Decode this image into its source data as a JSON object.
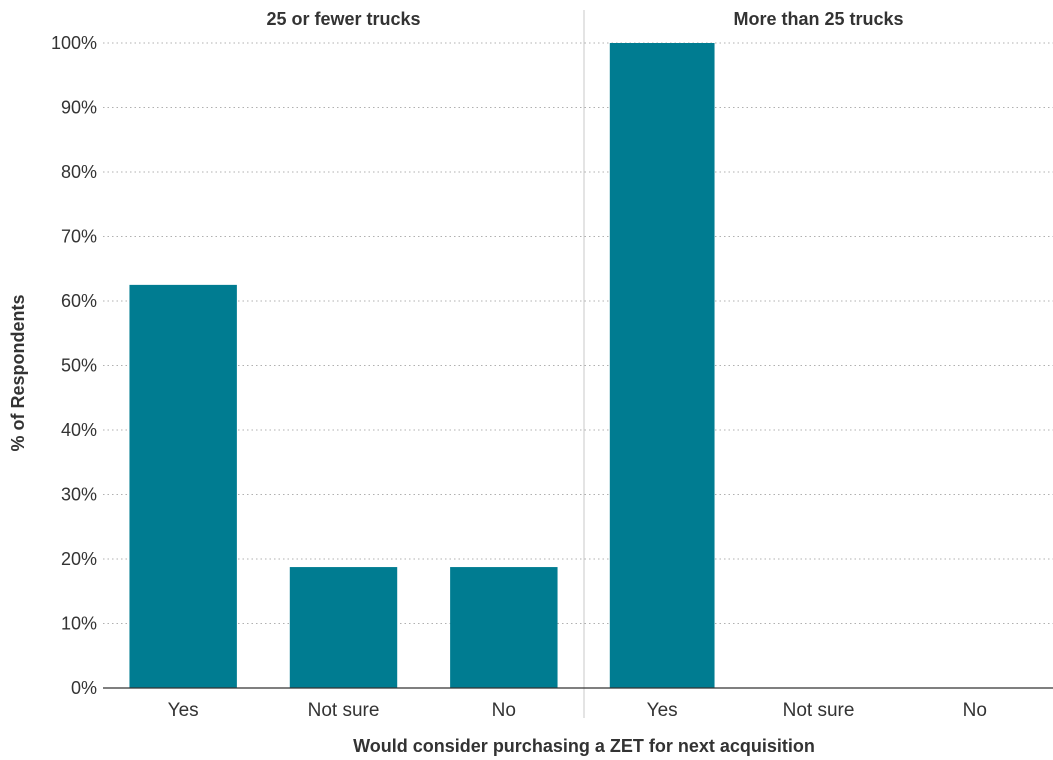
{
  "chart_data": {
    "type": "bar",
    "ylabel": "% of Respondents",
    "xlabel": "Would consider purchasing a ZET for next acquisition",
    "ylim": [
      0,
      100
    ],
    "yticks": [
      "0%",
      "10%",
      "20%",
      "30%",
      "40%",
      "50%",
      "60%",
      "70%",
      "80%",
      "90%",
      "100%"
    ],
    "grid": "horizontal dotted",
    "bar_color": "#007C91",
    "panels": [
      {
        "title": "25 or fewer trucks",
        "categories": [
          "Yes",
          "Not sure",
          "No"
        ],
        "values": [
          62.5,
          18.75,
          18.75
        ]
      },
      {
        "title": "More than 25 trucks",
        "categories": [
          "Yes",
          "Not sure",
          "No"
        ],
        "values": [
          100,
          0,
          0
        ]
      }
    ]
  }
}
